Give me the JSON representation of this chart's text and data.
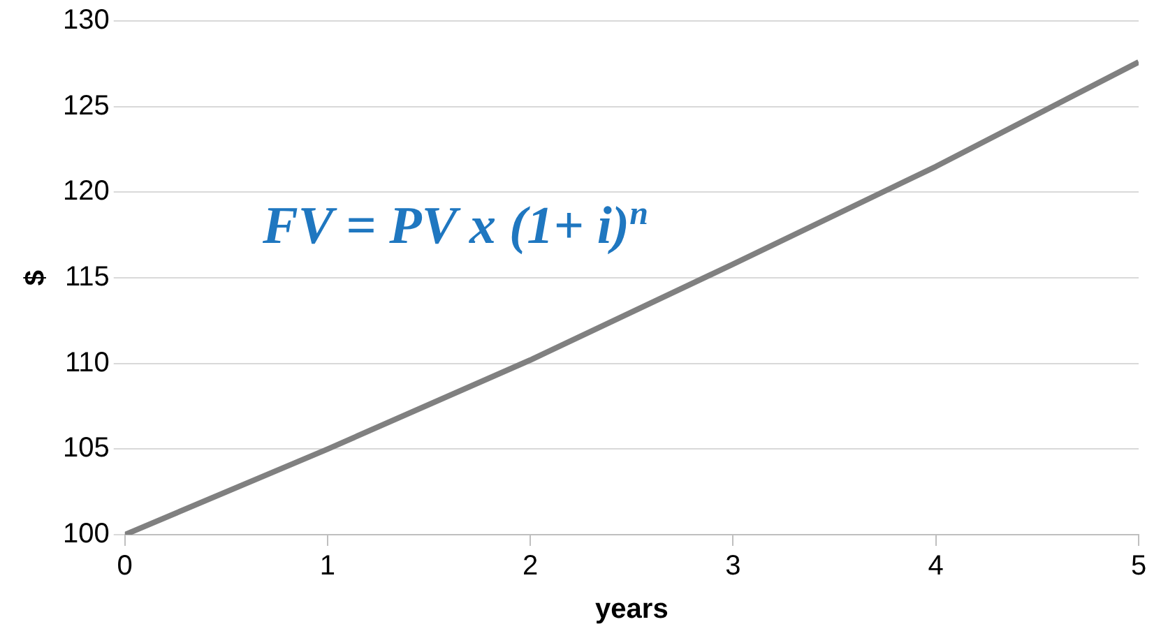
{
  "chart_data": {
    "type": "line",
    "xlabel": "years",
    "ylabel": "$",
    "x": [
      0,
      1,
      2,
      3,
      4,
      5
    ],
    "series": [
      {
        "color": "#808080",
        "values": [
          100,
          105,
          110.2,
          115.8,
          121.5,
          127.6
        ]
      }
    ],
    "xlim": [
      0,
      5
    ],
    "xticks": [
      0,
      1,
      2,
      3,
      4,
      5
    ],
    "ylim": [
      100,
      130
    ],
    "yticks": [
      100,
      105,
      110,
      115,
      120,
      125,
      130
    ],
    "grid": "y",
    "legend": false,
    "marker": "none",
    "line_style": "solid",
    "annotations": [
      "FV = PV x (1+ i)$^{n}$"
    ]
  }
}
